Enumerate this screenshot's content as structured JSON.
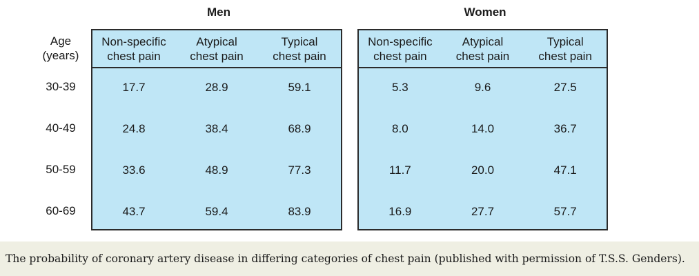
{
  "table": {
    "age_header": "Age\n(years)",
    "men": {
      "title": "Men",
      "columns": [
        "Non-specific\nchest pain",
        "Atypical\nchest pain",
        "Typical\nchest pain"
      ],
      "rows": [
        [
          "17.7",
          "28.9",
          "59.1"
        ],
        [
          "24.8",
          "38.4",
          "68.9"
        ],
        [
          "33.6",
          "48.9",
          "77.3"
        ],
        [
          "43.7",
          "59.4",
          "83.9"
        ]
      ]
    },
    "women": {
      "title": "Women",
      "columns": [
        "Non-specific\nchest pain",
        "Atypical\nchest pain",
        "Typical\nchest pain"
      ],
      "rows": [
        [
          "5.3",
          "9.6",
          "27.5"
        ],
        [
          "8.0",
          "14.0",
          "36.7"
        ],
        [
          "11.7",
          "20.0",
          "47.1"
        ],
        [
          "16.9",
          "27.7",
          "57.7"
        ]
      ]
    },
    "ages": [
      "30-39",
      "40-49",
      "50-59",
      "60-69"
    ]
  },
  "caption": "The probability of coronary artery disease in differing categories of chest pain (published with permission of T.S.S. Genders)."
}
